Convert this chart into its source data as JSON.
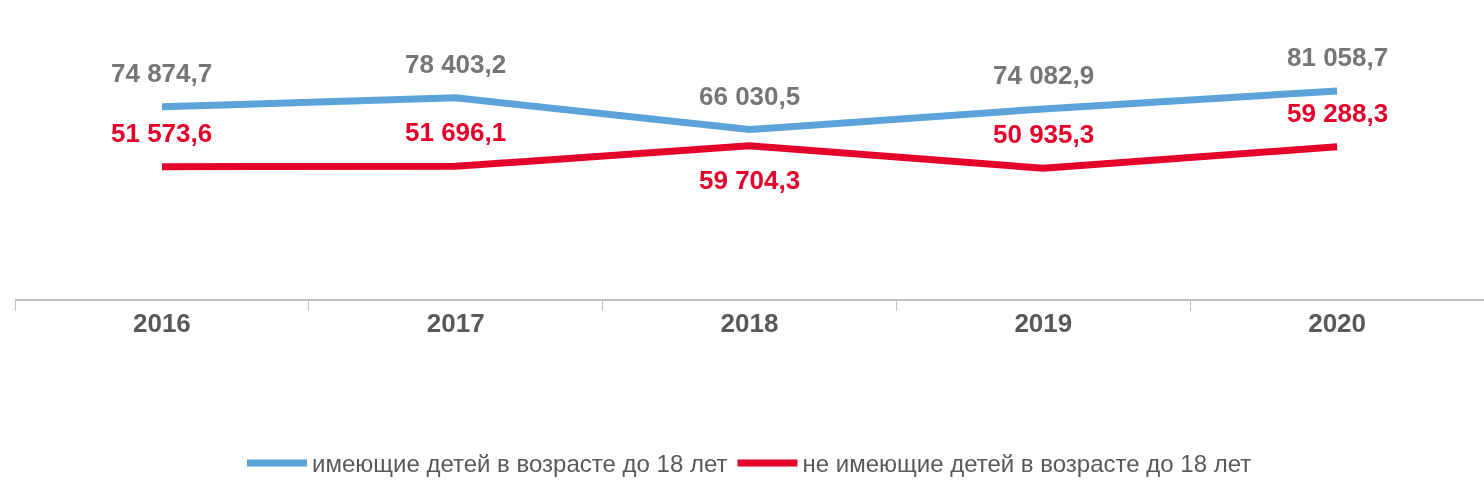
{
  "chart_data": {
    "type": "line",
    "categories": [
      "2016",
      "2017",
      "2018",
      "2019",
      "2020"
    ],
    "series": [
      {
        "name": "имеющие детей в возрасте до 18 лет",
        "color": "#5ba3d9",
        "values": [
          74874.7,
          78403.2,
          66030.5,
          74082.9,
          81058.7
        ],
        "value_labels": [
          "74 874,7",
          "78 403,2",
          "66 030,5",
          "74 082,9",
          "81 058,7"
        ]
      },
      {
        "name": "не имеющие детей в возрасте до 18 лет",
        "color": "#e4002b",
        "values": [
          51573.6,
          51696.1,
          59704.3,
          50935.3,
          59288.3
        ],
        "value_labels": [
          "51 573,6",
          "51 696,1",
          "59 704,3",
          "50 935,3",
          "59 288,3"
        ]
      }
    ],
    "grid": false,
    "legend": "bottom",
    "marker": "none",
    "line_style": "solid"
  }
}
